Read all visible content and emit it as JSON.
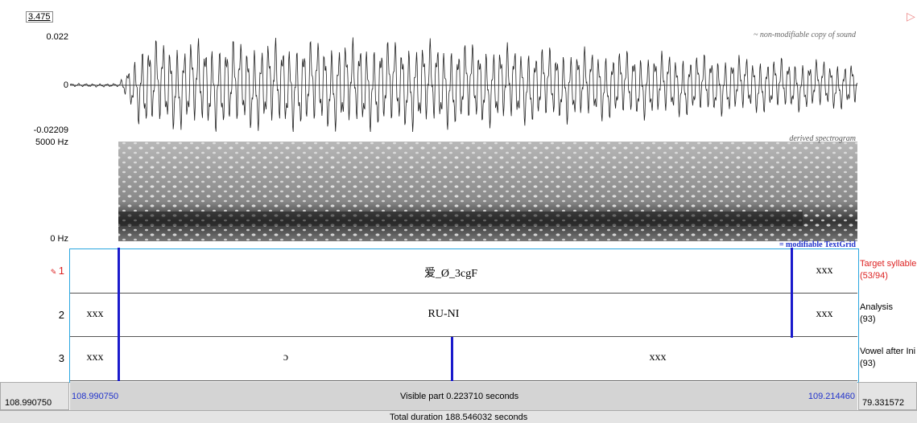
{
  "header": {
    "time": "3.475"
  },
  "waveform": {
    "top_label": "0.022",
    "zero_label": "0",
    "bottom_label": "-0.02209",
    "caption": "~ non-modifiable copy of sound"
  },
  "spectrogram": {
    "top_label": "5000 Hz",
    "bottom_label": "0 Hz",
    "caption": "derived spectrogram"
  },
  "textgrid": {
    "caption": "= modifiable TextGrid",
    "tiers": [
      {
        "number": "1",
        "name": "Target syllable",
        "count": "(53/94)",
        "intervals": [
          "爱_Ø_3cgF",
          "xxx"
        ]
      },
      {
        "number": "2",
        "name": "Analysis",
        "count": "(93)",
        "intervals": [
          "xxx",
          "RU-NI",
          "xxx"
        ]
      },
      {
        "number": "3",
        "name": "Vowel after Ini",
        "count": "(93)",
        "intervals": [
          "xxx",
          "ɔ",
          "xxx"
        ]
      }
    ]
  },
  "footer": {
    "window_start": "108.990750",
    "visible_start": "108.990750",
    "visible_part": "Visible part 0.223710 seconds",
    "visible_end": "109.214460",
    "window_end": "79.331572",
    "total": "Total duration 188.546032 seconds"
  }
}
